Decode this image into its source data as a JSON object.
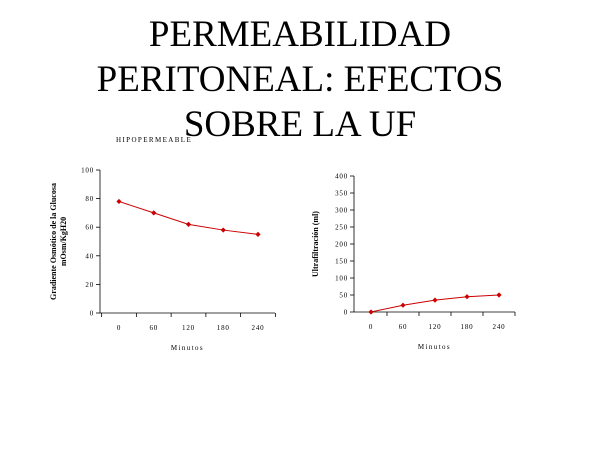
{
  "slide": {
    "title": "PERMEABILIDAD\nPERITONEAL: EFECTOS\nSOBRE LA UF",
    "subtitle": "HIPOPERMEABLE"
  },
  "colors": {
    "series": "#cc0000",
    "axis": "#000000"
  },
  "chart_data": [
    {
      "type": "line",
      "x": [
        0,
        60,
        120,
        180,
        240
      ],
      "xticks": [
        "0",
        "60",
        "120",
        "180",
        "240"
      ],
      "series": [
        {
          "values": [
            78,
            70,
            62,
            58,
            55
          ]
        }
      ],
      "xlabel": "Minutos",
      "ylabel_lines": [
        "Gradiente Osmótico de la Glucosa",
        "mOsm/KgH20"
      ],
      "ylim": [
        0,
        100
      ],
      "yticks": [
        "0",
        "20",
        "40",
        "60",
        "80",
        "100"
      ],
      "grid": false
    },
    {
      "type": "line",
      "x": [
        0,
        60,
        120,
        180,
        240
      ],
      "xticks": [
        "0",
        "60",
        "120",
        "180",
        "240"
      ],
      "series": [
        {
          "values": [
            0,
            20,
            35,
            45,
            50
          ]
        }
      ],
      "xlabel": "Minutos",
      "ylabel_lines": [
        "Ultrafiltración (ml)"
      ],
      "ylim": [
        0,
        400
      ],
      "yticks": [
        "0",
        "50",
        "100",
        "150",
        "200",
        "250",
        "300",
        "350",
        "400"
      ],
      "grid": false
    }
  ]
}
